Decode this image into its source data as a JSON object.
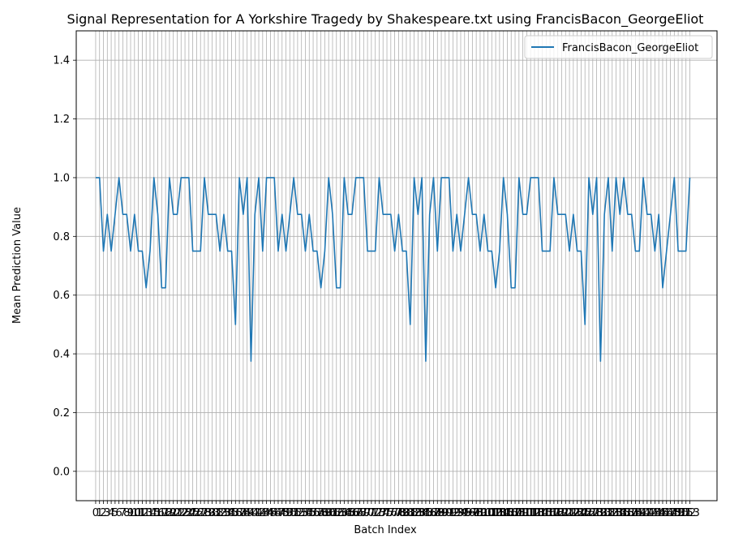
{
  "chart_data": {
    "type": "line",
    "title": "Signal Representation for A Yorkshire Tragedy by Shakespeare.txt using FrancisBacon_GeorgeEliot",
    "xlabel": "Batch Index",
    "ylabel": "Mean Prediction Value",
    "xlim": [
      -5,
      160
    ],
    "ylim": [
      -0.1,
      1.5
    ],
    "y_ticks": [
      0.0,
      0.2,
      0.4,
      0.6,
      0.8,
      1.0,
      1.2,
      1.4
    ],
    "y_tick_labels": [
      "0.0",
      "0.2",
      "0.4",
      "0.6",
      "0.8",
      "1.0",
      "1.2",
      "1.4"
    ],
    "grid": true,
    "legend_position": "top-right",
    "series": [
      {
        "name": "FrancisBacon_GeorgeEliot",
        "color": "#1f77b4",
        "x": [
          0,
          1,
          2,
          3,
          4,
          5,
          6,
          7,
          8,
          9,
          10,
          11,
          12,
          13,
          14,
          15,
          16,
          17,
          18,
          19,
          20,
          21,
          22,
          23,
          24,
          25,
          26,
          27,
          28,
          29,
          30,
          31,
          32,
          33,
          34,
          35,
          36,
          37,
          38,
          39,
          40,
          41,
          42,
          43,
          44,
          45,
          46,
          47,
          48,
          49,
          50,
          51,
          52,
          53,
          54,
          55,
          56,
          57,
          58,
          59,
          60,
          61,
          62,
          63,
          64,
          65,
          66,
          67,
          68,
          69,
          70,
          71,
          72,
          73,
          74,
          75,
          76,
          77,
          78,
          79,
          80,
          81,
          82,
          83,
          84,
          85,
          86,
          87,
          88,
          89,
          90,
          91,
          92,
          93,
          94,
          95,
          96,
          97,
          98,
          99,
          100,
          101,
          102,
          103,
          104,
          105,
          106,
          107,
          108,
          109,
          110,
          111,
          112,
          113,
          114,
          115,
          116,
          117,
          118,
          119,
          120,
          121,
          122,
          123,
          124,
          125,
          126,
          127,
          128,
          129,
          130,
          131,
          132,
          133,
          134,
          135,
          136,
          137,
          138,
          139,
          140,
          141,
          142,
          143,
          144,
          145,
          146,
          147,
          148,
          149,
          150,
          151,
          152,
          153
        ],
        "values": [
          1.0,
          1.0,
          0.75,
          0.875,
          0.75,
          0.875,
          1.0,
          0.875,
          0.875,
          0.75,
          0.875,
          0.75,
          0.75,
          0.625,
          0.75,
          1.0,
          0.875,
          0.625,
          0.625,
          1.0,
          0.875,
          0.875,
          1.0,
          1.0,
          1.0,
          0.75,
          0.75,
          0.75,
          1.0,
          0.875,
          0.875,
          0.875,
          0.75,
          0.875,
          0.75,
          0.75,
          0.5,
          1.0,
          0.875,
          1.0,
          0.375,
          0.875,
          1.0,
          0.75,
          1.0,
          1.0,
          1.0,
          0.75,
          0.875,
          0.75,
          0.875,
          1.0,
          0.875,
          0.875,
          0.75,
          0.875,
          0.75,
          0.75,
          0.625,
          0.75,
          1.0,
          0.875,
          0.625,
          0.625,
          1.0,
          0.875,
          0.875,
          1.0,
          1.0,
          1.0,
          0.75,
          0.75,
          0.75,
          1.0,
          0.875,
          0.875,
          0.875,
          0.75,
          0.875,
          0.75,
          0.75,
          0.5,
          1.0,
          0.875,
          1.0,
          0.375,
          0.875,
          1.0,
          0.75,
          1.0,
          1.0,
          1.0,
          0.75,
          0.875,
          0.75,
          0.875,
          1.0,
          0.875,
          0.875,
          0.75,
          0.875,
          0.75,
          0.75,
          0.625,
          0.75,
          1.0,
          0.875,
          0.625,
          0.625,
          1.0,
          0.875,
          0.875,
          1.0,
          1.0,
          1.0,
          0.75,
          0.75,
          0.75,
          1.0,
          0.875,
          0.875,
          0.875,
          0.75,
          0.875,
          0.75,
          0.75,
          0.5,
          1.0,
          0.875,
          1.0,
          0.375,
          0.875,
          1.0,
          0.75,
          1.0,
          0.875,
          1.0,
          0.875,
          0.875,
          0.75,
          0.75,
          1.0,
          0.875,
          0.875,
          0.75,
          0.875,
          0.625,
          0.75,
          0.875,
          1.0,
          0.75,
          0.75,
          0.75,
          1.0
        ]
      }
    ]
  }
}
